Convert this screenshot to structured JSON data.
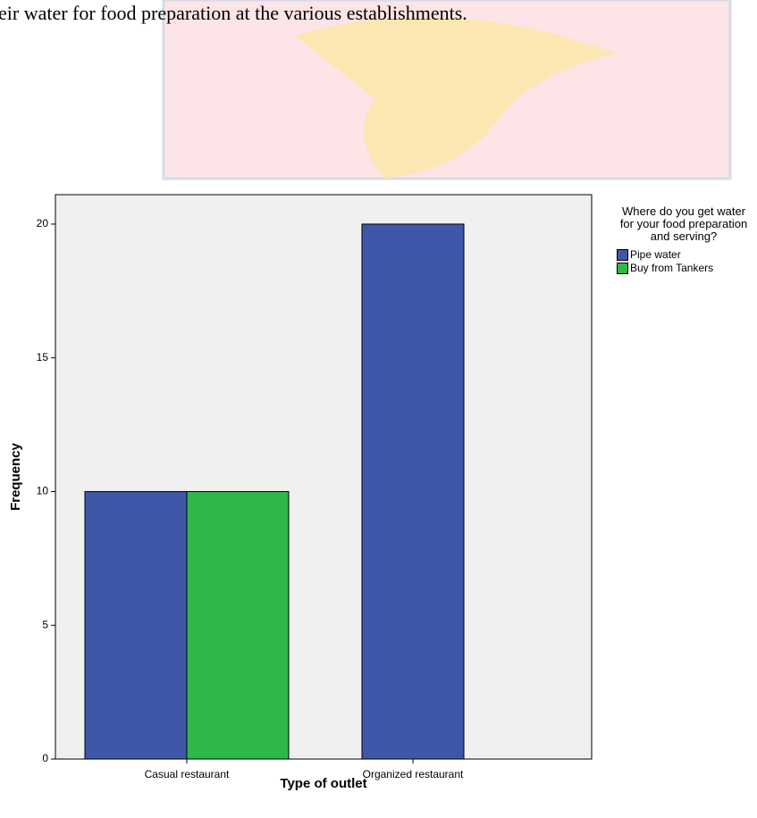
{
  "caption": "eir water for food preparation at the various establishments.",
  "chart_data": {
    "type": "bar",
    "x_label": "Type of outlet",
    "y_label": "Frequency",
    "categories": [
      "Casual restaurant",
      "Organized restaurant"
    ],
    "series": [
      {
        "name": "Pipe water",
        "color": "#3f57a8",
        "values": [
          10,
          20
        ]
      },
      {
        "name": "Buy from Tankers",
        "color": "#2eb84b",
        "values": [
          10,
          null
        ]
      }
    ],
    "legend_title": "Where do you get water for your food preparation and serving?",
    "legend": "right",
    "ylim": [
      0,
      21.1
    ],
    "yticks": [
      0,
      5,
      10,
      15,
      20
    ]
  }
}
